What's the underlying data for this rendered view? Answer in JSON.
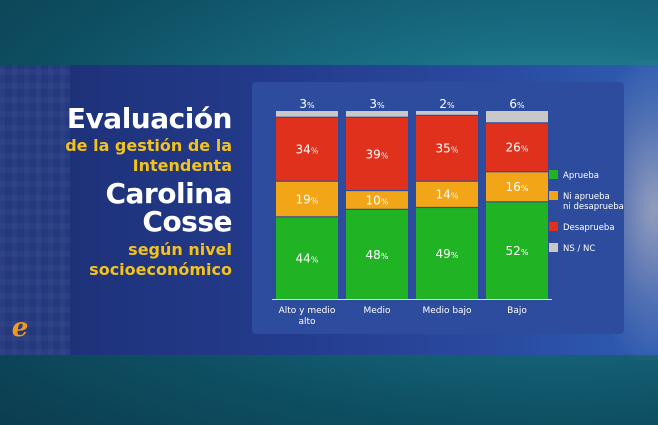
{
  "title": {
    "line1": "Evaluación",
    "line2": "de la gestión de la",
    "line3": "Intendenta",
    "line4": "Carolina",
    "line5": "Cosse",
    "line6": "según nivel",
    "line7": "socioeconómico"
  },
  "logo": {
    "glyph": "e"
  },
  "chart_data": {
    "type": "bar",
    "stacked": true,
    "orientation": "vertical",
    "categories": [
      "Alto y medio alto",
      "Medio",
      "Medio bajo",
      "Bajo"
    ],
    "series": [
      {
        "name": "Aprueba",
        "values": [
          44,
          48,
          49,
          52
        ],
        "color": "#20b324"
      },
      {
        "name": "Ni aprueba ni desaprueba",
        "values": [
          19,
          10,
          14,
          16
        ],
        "color": "#f2a516"
      },
      {
        "name": "Desaprueba",
        "values": [
          34,
          39,
          35,
          26
        ],
        "color": "#e0311c"
      },
      {
        "name": "NS / NC",
        "values": [
          3,
          3,
          2,
          6
        ],
        "color": "#c8c8c8"
      }
    ],
    "value_suffix": "%",
    "ylim": [
      0,
      100
    ],
    "legend_position": "right",
    "grid": false
  }
}
